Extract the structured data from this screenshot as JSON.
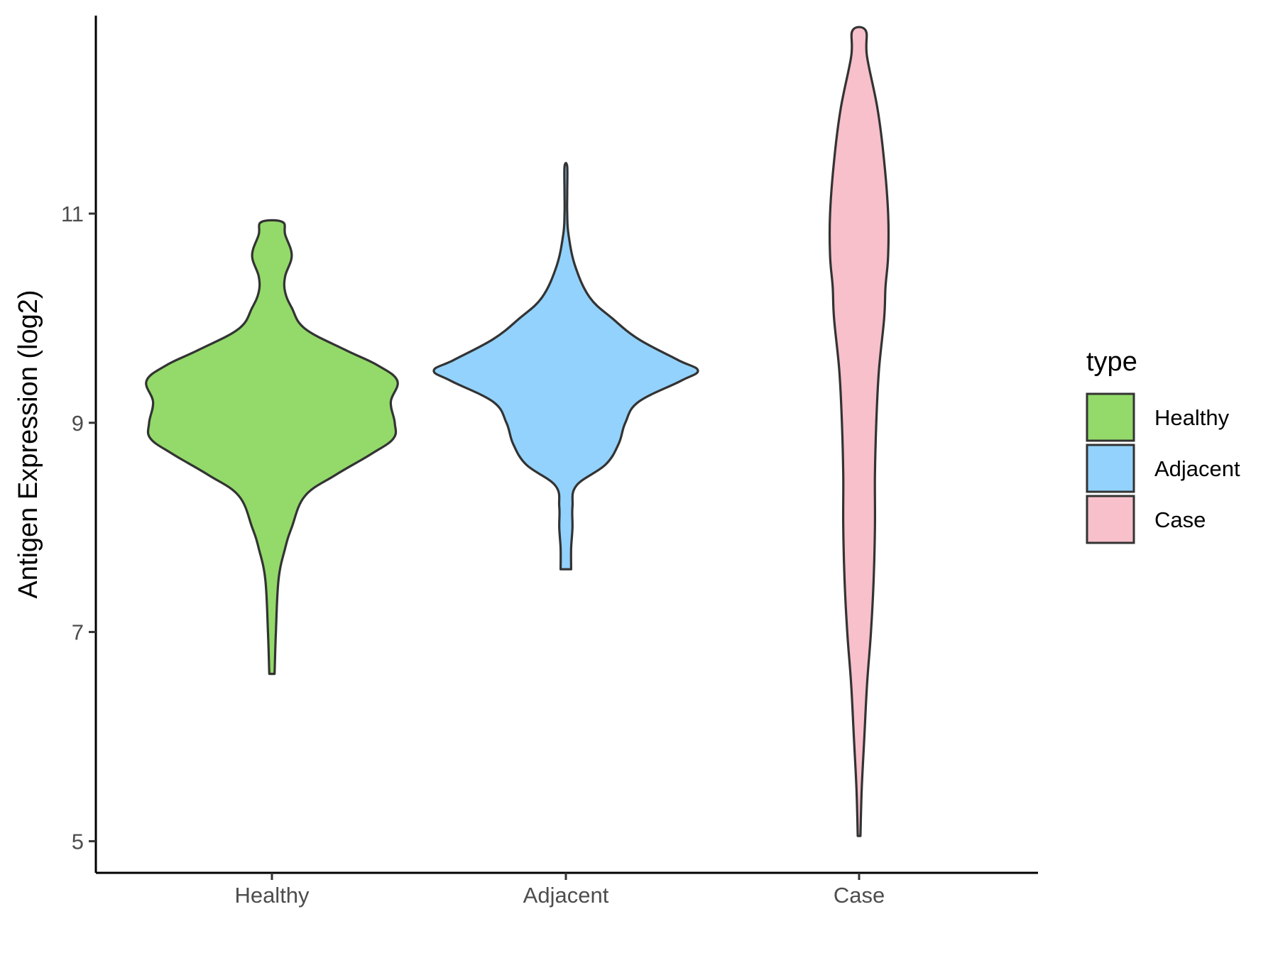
{
  "chart_data": {
    "type": "violin",
    "title": "",
    "xlabel": "",
    "ylabel": "Antigen Expression (log2)",
    "ylim": [
      4.7,
      12.9
    ],
    "yticks": [
      5,
      7,
      9,
      11
    ],
    "categories": [
      "Healthy",
      "Adjacent",
      "Case"
    ],
    "grid": false,
    "legend": {
      "title": "type",
      "position": "right",
      "entries": [
        {
          "label": "Healthy",
          "color": "#93DA6A"
        },
        {
          "label": "Adjacent",
          "color": "#93D2FC"
        },
        {
          "label": "Case",
          "color": "#F7C0CB"
        }
      ]
    },
    "series": [
      {
        "category": "Healthy",
        "color": "#93DA6A",
        "profile": [
          [
            6.6,
            0.02
          ],
          [
            7.0,
            0.03
          ],
          [
            7.5,
            0.05
          ],
          [
            7.8,
            0.1
          ],
          [
            8.0,
            0.15
          ],
          [
            8.3,
            0.25
          ],
          [
            8.5,
            0.48
          ],
          [
            8.7,
            0.75
          ],
          [
            8.85,
            0.92
          ],
          [
            9.0,
            0.93
          ],
          [
            9.2,
            0.9
          ],
          [
            9.4,
            0.95
          ],
          [
            9.55,
            0.8
          ],
          [
            9.7,
            0.55
          ],
          [
            9.9,
            0.25
          ],
          [
            10.1,
            0.15
          ],
          [
            10.25,
            0.1
          ],
          [
            10.4,
            0.1
          ],
          [
            10.6,
            0.15
          ],
          [
            10.8,
            0.1
          ],
          [
            10.92,
            0.08
          ]
        ]
      },
      {
        "category": "Adjacent",
        "color": "#93D2FC",
        "profile": [
          [
            7.6,
            0.04
          ],
          [
            7.8,
            0.04
          ],
          [
            8.0,
            0.05
          ],
          [
            8.2,
            0.05
          ],
          [
            8.4,
            0.08
          ],
          [
            8.6,
            0.3
          ],
          [
            8.8,
            0.4
          ],
          [
            9.0,
            0.45
          ],
          [
            9.2,
            0.55
          ],
          [
            9.4,
            0.87
          ],
          [
            9.5,
            1.0
          ],
          [
            9.6,
            0.85
          ],
          [
            9.8,
            0.55
          ],
          [
            10.0,
            0.35
          ],
          [
            10.2,
            0.18
          ],
          [
            10.5,
            0.07
          ],
          [
            10.8,
            0.02
          ],
          [
            11.0,
            0.01
          ],
          [
            11.2,
            0.01
          ],
          [
            11.45,
            0.01
          ]
        ]
      },
      {
        "category": "Case",
        "color": "#F7C0CB",
        "profile": [
          [
            5.05,
            0.01
          ],
          [
            5.5,
            0.02
          ],
          [
            6.0,
            0.04
          ],
          [
            6.5,
            0.06
          ],
          [
            7.0,
            0.09
          ],
          [
            7.5,
            0.11
          ],
          [
            8.0,
            0.12
          ],
          [
            8.5,
            0.12
          ],
          [
            9.0,
            0.13
          ],
          [
            9.5,
            0.15
          ],
          [
            10.0,
            0.19
          ],
          [
            10.3,
            0.2
          ],
          [
            10.6,
            0.22
          ],
          [
            11.0,
            0.22
          ],
          [
            11.5,
            0.19
          ],
          [
            12.0,
            0.14
          ],
          [
            12.5,
            0.06
          ],
          [
            12.75,
            0.05
          ]
        ]
      }
    ]
  }
}
